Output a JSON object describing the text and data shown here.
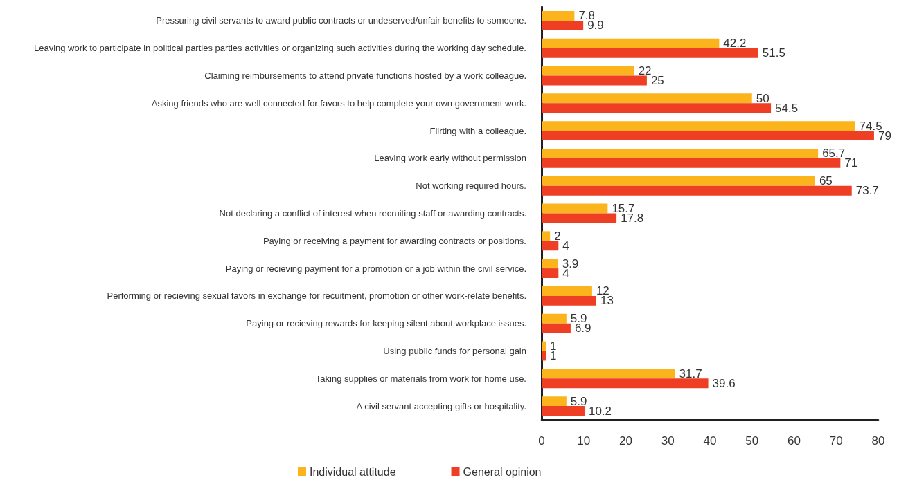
{
  "chart_data": {
    "type": "bar",
    "orientation": "horizontal",
    "categories": [
      "Pressuring civil servants to award public contracts or undeserved/unfair benefits to someone.",
      "Leaving work to participate in political parties parties activities or organizing such activities during the working day schedule.",
      "Claiming reimbursements to attend private functions hosted by a work colleague.",
      "Asking friends who are well connected for favors to help complete your own government work.",
      "Flirting with a colleague.",
      "Leaving work early without permission",
      "Not working required hours.",
      "Not declaring a conflict of interest when recruiting staff or awarding contracts.",
      "Paying or receiving a payment for awarding contracts or positions.",
      "Paying or recieving payment for a promotion or a job within the civil service.",
      "Performing or recieving sexual favors in exchange for recuitment, promotion or other work-relate benefits.",
      "Paying or recieving rewards for keeping silent about workplace issues.",
      "Using public funds for personal gain",
      "Taking supplies or materials from work for home use.",
      "A civil servant accepting gifts or hospitality."
    ],
    "series": [
      {
        "name": "Individual attitude",
        "color": "#fbb41c",
        "values": [
          7.8,
          42.2,
          22,
          50,
          74.5,
          65.7,
          65,
          15.7,
          2,
          3.9,
          12,
          5.9,
          1,
          31.7,
          5.9
        ]
      },
      {
        "name": "General opinion",
        "color": "#ee3e23",
        "values": [
          9.9,
          51.5,
          25,
          54.5,
          79,
          71,
          73.7,
          17.8,
          4,
          4,
          13,
          6.9,
          1,
          39.6,
          10.2
        ]
      }
    ],
    "xlim": [
      0,
      80
    ],
    "xticks": [
      0,
      10,
      20,
      30,
      40,
      50,
      60,
      70,
      80
    ],
    "data_labels": true,
    "grid": false,
    "legend": "bottom"
  }
}
